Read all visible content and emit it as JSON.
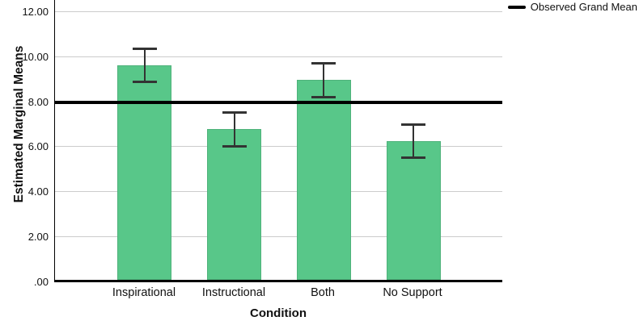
{
  "chart_data": {
    "type": "bar",
    "title": "",
    "xlabel": "Condition",
    "ylabel": "Estimated Marginal Means",
    "categories": [
      "Inspirational",
      "Instructional",
      "Both",
      "No Support"
    ],
    "values": [
      9.65,
      6.8,
      9.0,
      6.25
    ],
    "error_bars": [
      [
        8.9,
        10.4
      ],
      [
        6.05,
        7.55
      ],
      [
        8.25,
        9.75
      ],
      [
        5.55,
        7.0
      ]
    ],
    "reference_line": {
      "label": "Observed Grand Mean",
      "value": 8.0
    },
    "ylim": [
      0,
      12.55
    ],
    "yticks": [
      0,
      2,
      4,
      6,
      8,
      10,
      12
    ],
    "ytick_labels": [
      ".00",
      "2.00",
      "4.00",
      "6.00",
      "8.00",
      "10.00",
      "12.00"
    ],
    "grid": true,
    "legend_position": "top-right"
  },
  "colors": {
    "bar_fill": "#58c789",
    "gridline": "#cccccc",
    "axis": "#000000",
    "error_bar": "#333333",
    "reference_line": "#000000",
    "text": "#111111"
  }
}
